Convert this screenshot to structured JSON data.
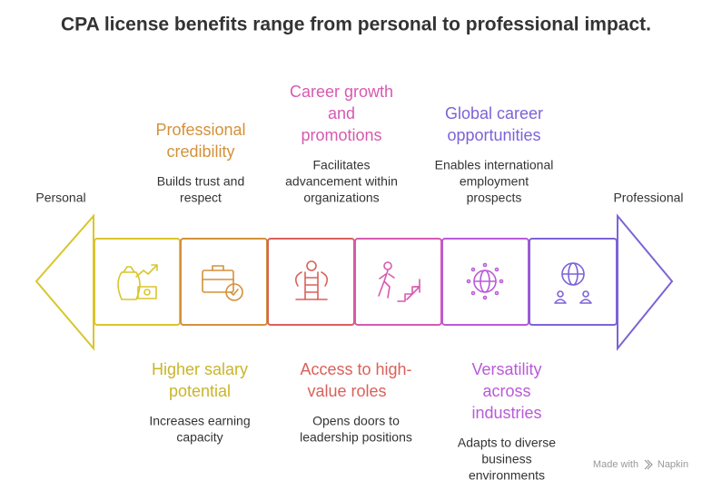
{
  "header": {
    "title": "CPA license benefits range from personal to professional impact."
  },
  "scale": {
    "left": "Personal",
    "right": "Professional"
  },
  "benefits": [
    {
      "title": [
        "Higher salary",
        "potential"
      ],
      "description": [
        "Increases earning",
        "capacity"
      ]
    },
    {
      "title": [
        "Professional",
        "credibility"
      ],
      "description": [
        "Builds trust and",
        "respect"
      ]
    },
    {
      "title": [
        "Access to high-",
        "value roles"
      ],
      "description": [
        "Opens doors to",
        "leadership positions"
      ]
    },
    {
      "title": [
        "Career growth",
        "and",
        "promotions"
      ],
      "description": [
        "Facilitates",
        "advancement within",
        "organizations"
      ]
    },
    {
      "title": [
        "Versatility",
        "across",
        "industries"
      ],
      "description": [
        "Adapts to diverse",
        "business",
        "environments"
      ]
    },
    {
      "title": [
        "Global career",
        "opportunities"
      ],
      "description": [
        "Enables international",
        "employment",
        "prospects"
      ]
    }
  ],
  "footer": {
    "credit": "Made with",
    "brand": "Napkin"
  }
}
